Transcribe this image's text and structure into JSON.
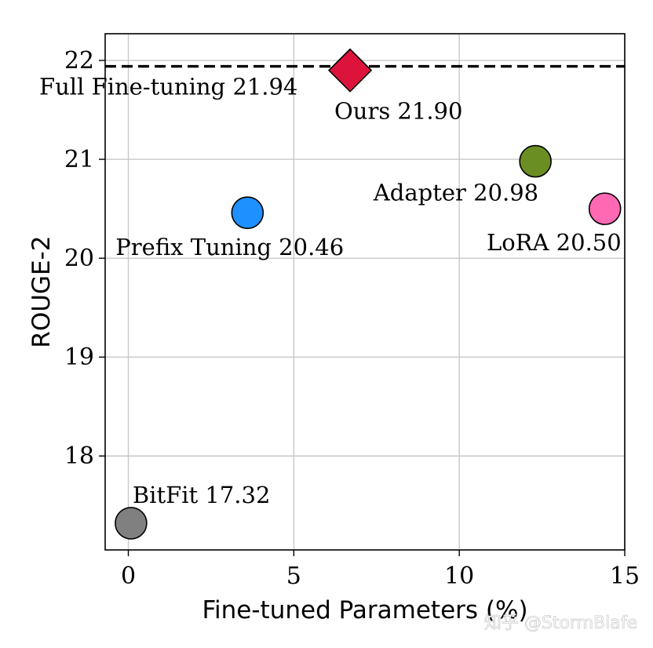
{
  "chart_data": {
    "type": "scatter",
    "xlabel": "Fine-tuned Parameters (%)",
    "ylabel": "ROUGE-2",
    "xlim": [
      -0.7,
      15
    ],
    "ylim": [
      17.05,
      22.27
    ],
    "xticks": [
      0,
      5,
      10,
      15
    ],
    "yticks": [
      18,
      19,
      20,
      21,
      22
    ],
    "grid": true,
    "reference_line": {
      "label": "Full Fine-tuning 21.94",
      "y": 21.94,
      "style": "dashed"
    },
    "points": [
      {
        "name": "Ours",
        "label": "Ours 21.90",
        "x": 6.7,
        "y": 21.9,
        "marker": "diamond",
        "color": "#dc143c"
      },
      {
        "name": "Adapter",
        "label": "Adapter 20.98",
        "x": 12.3,
        "y": 20.98,
        "marker": "circle",
        "color": "#6b8e23"
      },
      {
        "name": "LoRA",
        "label": "LoRA 20.50",
        "x": 14.4,
        "y": 20.5,
        "marker": "circle",
        "color": "#ff69b4"
      },
      {
        "name": "Prefix Tuning",
        "label": "Prefix Tuning 20.46",
        "x": 3.6,
        "y": 20.46,
        "marker": "circle",
        "color": "#1e90ff"
      },
      {
        "name": "BitFit",
        "label": "BitFit 17.32",
        "x": 0.08,
        "y": 17.32,
        "marker": "circle",
        "color": "#808080"
      }
    ]
  },
  "watermark": "知乎 @StormBlafe"
}
